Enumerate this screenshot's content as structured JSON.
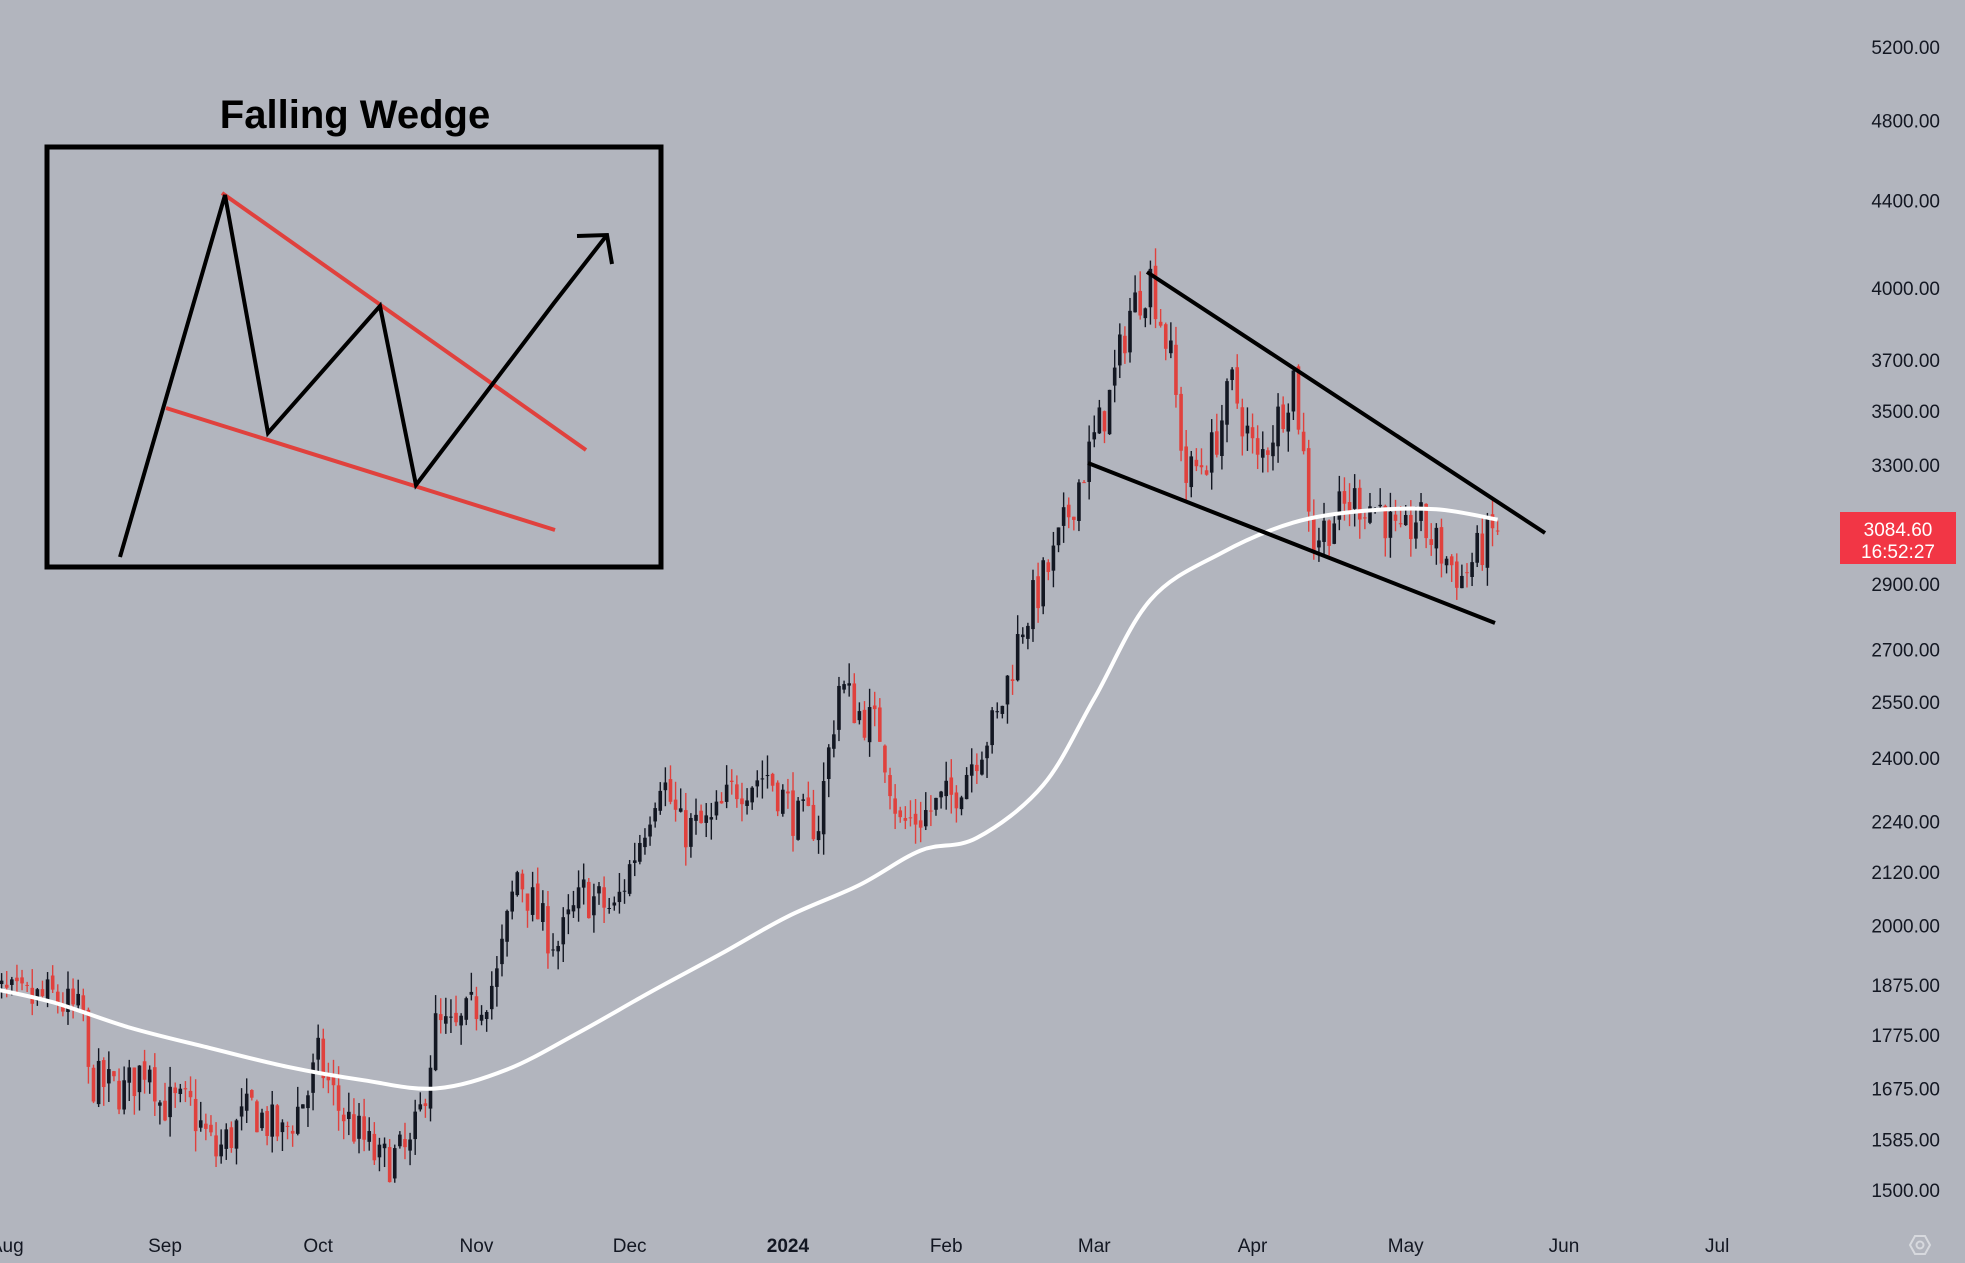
{
  "chart_data": {
    "type": "candlestick",
    "title": "Falling Wedge",
    "y_scale": "log",
    "y_ticks": [
      "5200.00",
      "4800.00",
      "4400.00",
      "4000.00",
      "3700.00",
      "3500.00",
      "3300.00",
      "2900.00",
      "2700.00",
      "2550.00",
      "2400.00",
      "2240.00",
      "2120.00",
      "2000.00",
      "1875.00",
      "1775.00",
      "1675.00",
      "1585.00",
      "1500.00"
    ],
    "x_ticks": [
      "Aug",
      "Sep",
      "Oct",
      "Nov",
      "Dec",
      "2024",
      "Feb",
      "Mar",
      "Apr",
      "May",
      "Jun",
      "Jul"
    ],
    "x_tick_bold": "2024",
    "last_price": "3084.60",
    "countdown": "16:52:27",
    "colors": {
      "background": "#b2b5be",
      "up": "#131722",
      "down": "#e0413d",
      "moving_average": "#ffffff",
      "price_badge": "#f23645",
      "wedge_lines": "#e0413d",
      "trend_lines": "#000000"
    },
    "close_path": [
      [
        "2023-07-28",
        1865
      ],
      [
        "2023-08-04",
        1840
      ],
      [
        "2023-08-10",
        1850
      ],
      [
        "2023-08-16",
        1810
      ],
      [
        "2023-08-17",
        1690
      ],
      [
        "2023-08-24",
        1670
      ],
      [
        "2023-08-29",
        1730
      ],
      [
        "2023-08-31",
        1650
      ],
      [
        "2023-09-06",
        1640
      ],
      [
        "2023-09-11",
        1560
      ],
      [
        "2023-09-18",
        1640
      ],
      [
        "2023-09-24",
        1590
      ],
      [
        "2023-09-29",
        1670
      ],
      [
        "2023-10-01",
        1730
      ],
      [
        "2023-10-05",
        1640
      ],
      [
        "2023-10-11",
        1570
      ],
      [
        "2023-10-13",
        1545
      ],
      [
        "2023-10-19",
        1565
      ],
      [
        "2023-10-21",
        1630
      ],
      [
        "2023-10-24",
        1790
      ],
      [
        "2023-10-28",
        1780
      ],
      [
        "2023-11-05",
        1890
      ],
      [
        "2023-11-09",
        2120
      ],
      [
        "2023-11-14",
        2000
      ],
      [
        "2023-11-17",
        1960
      ],
      [
        "2023-11-22",
        2070
      ],
      [
        "2023-11-28",
        2030
      ],
      [
        "2023-12-03",
        2200
      ],
      [
        "2023-12-07",
        2360
      ],
      [
        "2023-12-11",
        2220
      ],
      [
        "2023-12-17",
        2230
      ],
      [
        "2023-12-22",
        2330
      ],
      [
        "2023-12-28",
        2360
      ],
      [
        "2024-01-03",
        2240
      ],
      [
        "2024-01-07",
        2240
      ],
      [
        "2024-01-11",
        2600
      ],
      [
        "2024-01-15",
        2520
      ],
      [
        "2024-01-19",
        2470
      ],
      [
        "2024-01-23",
        2230
      ],
      [
        "2024-01-28",
        2260
      ],
      [
        "2024-02-02",
        2300
      ],
      [
        "2024-02-07",
        2420
      ],
      [
        "2024-02-11",
        2500
      ],
      [
        "2024-02-16",
        2780
      ],
      [
        "2024-02-22",
        2980
      ],
      [
        "2024-02-27",
        3240
      ],
      [
        "2024-03-04",
        3550
      ],
      [
        "2024-03-08",
        3900
      ],
      [
        "2024-03-12",
        4050
      ],
      [
        "2024-03-16",
        3700
      ],
      [
        "2024-03-19",
        3250
      ],
      [
        "2024-03-24",
        3350
      ],
      [
        "2024-03-28",
        3600
      ],
      [
        "2024-04-02",
        3300
      ],
      [
        "2024-04-07",
        3520
      ],
      [
        "2024-04-09",
        3640
      ],
      [
        "2024-04-13",
        3040
      ],
      [
        "2024-04-17",
        3120
      ],
      [
        "2024-04-21",
        3180
      ],
      [
        "2024-04-26",
        3150
      ],
      [
        "2024-04-30",
        3020
      ],
      [
        "2024-05-03",
        3120
      ],
      [
        "2024-05-08",
        3000
      ],
      [
        "2024-05-12",
        2920
      ],
      [
        "2024-05-16",
        3020
      ],
      [
        "2024-05-19",
        3085
      ]
    ],
    "moving_average": [
      [
        "2023-07-28",
        1870
      ],
      [
        "2023-08-10",
        1840
      ],
      [
        "2023-08-25",
        1790
      ],
      [
        "2023-09-10",
        1750
      ],
      [
        "2023-09-25",
        1715
      ],
      [
        "2023-10-10",
        1690
      ],
      [
        "2023-10-24",
        1675
      ],
      [
        "2023-11-07",
        1710
      ],
      [
        "2023-11-21",
        1780
      ],
      [
        "2023-12-05",
        1860
      ],
      [
        "2023-12-19",
        1940
      ],
      [
        "2024-01-01",
        2020
      ],
      [
        "2024-01-15",
        2090
      ],
      [
        "2024-01-27",
        2170
      ],
      [
        "2024-02-07",
        2200
      ],
      [
        "2024-02-20",
        2330
      ],
      [
        "2024-03-01",
        2560
      ],
      [
        "2024-03-12",
        2850
      ],
      [
        "2024-03-26",
        3000
      ],
      [
        "2024-04-09",
        3100
      ],
      [
        "2024-04-23",
        3140
      ],
      [
        "2024-05-07",
        3145
      ],
      [
        "2024-05-19",
        3110
      ]
    ]
  },
  "inset": {
    "title": "Falling Wedge"
  }
}
